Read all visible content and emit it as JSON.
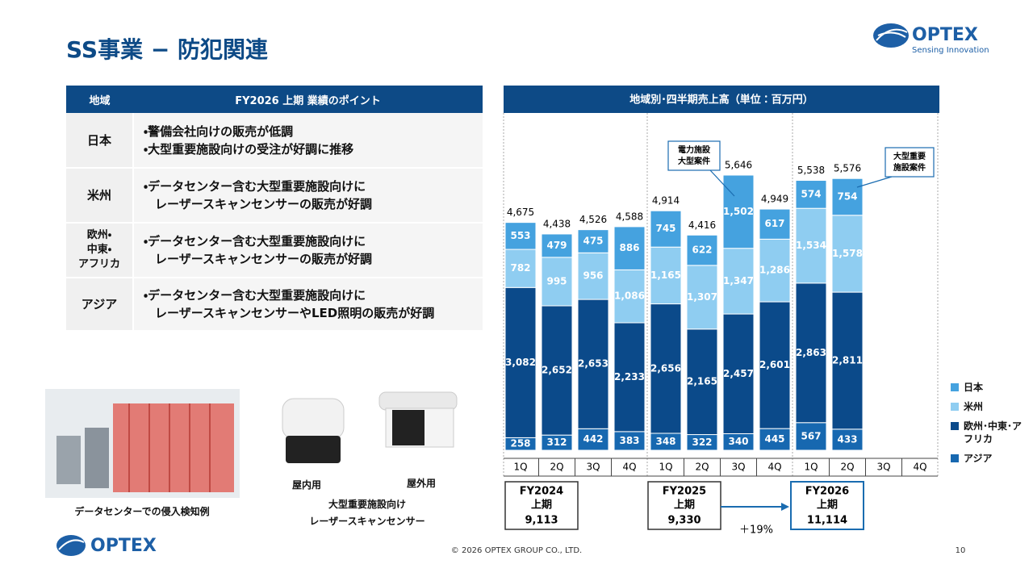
{
  "header": {
    "title": "SS事業 − 防犯関連",
    "logo": "OPTEX",
    "tagline": "Sensing Innovation"
  },
  "table": {
    "columns": [
      "地域",
      "FY2026 上期 業績のポイント"
    ],
    "rows": [
      {
        "region": [
          "日本"
        ],
        "points": [
          "・警備会社向けの販売が低調",
          "・大型重要施設向けの受注が好調に推移"
        ]
      },
      {
        "region": [
          "米州"
        ],
        "points": [
          "・データセンター含む大型重要施設向けに",
          "レーザースキャンセンサーの販売が好調"
        ]
      },
      {
        "region": [
          "欧州・",
          "中東・",
          "アフリカ"
        ],
        "points": [
          "・データセンター含む大型重要施設向けに",
          "レーザースキャンセンサーの販売が好調"
        ]
      },
      {
        "region": [
          "アジア"
        ],
        "points": [
          "・データセンター含む大型重要施設向けに",
          "レーザースキャンセンサーやLED照明の販売が好調"
        ]
      }
    ]
  },
  "images": {
    "datacenter_caption": "データセンターでの侵入検知例",
    "indoor": "屋内用",
    "outdoor": "屋外用",
    "sensor_caption": [
      "大型重要施設向け",
      "レーザースキャンセンサー"
    ]
  },
  "chart_data": {
    "type": "bar",
    "stacked": true,
    "title": "地域別･四半期売上高（単位：百万円）",
    "categories": [
      "1Q",
      "2Q",
      "3Q",
      "4Q",
      "1Q",
      "2Q",
      "3Q",
      "4Q",
      "1Q",
      "2Q",
      "3Q",
      "4Q"
    ],
    "series": [
      {
        "name": "アジア",
        "color": "#1768b0",
        "values": [
          258,
          312,
          442,
          383,
          348,
          322,
          340,
          445,
          567,
          433,
          null,
          null
        ],
        "value_labels": [
          "258",
          "312",
          "442",
          "383",
          "348",
          "322",
          "340",
          "445",
          "567",
          "433",
          null,
          null
        ]
      },
      {
        "name": "欧州･中東･アフリカ",
        "color": "#0b4a8a",
        "values": [
          3082,
          2652,
          2653,
          2233,
          2656,
          2165,
          2457,
          2601,
          2863,
          2811,
          null,
          null
        ],
        "value_labels": [
          "3,082",
          "2,652",
          "2,653",
          "2,233",
          "2,656",
          "2,165",
          "2,457",
          "2,601",
          "2,863",
          "2,811",
          null,
          null
        ]
      },
      {
        "name": "米州",
        "color": "#8fcdf1",
        "values": [
          782,
          995,
          956,
          1086,
          1165,
          1307,
          1347,
          1286,
          1534,
          1578,
          null,
          null
        ],
        "value_labels": [
          "782",
          "995",
          "956",
          "1,086",
          "1,165",
          "1,307",
          "1,347",
          "1,286",
          "1,534",
          "1,578",
          null,
          null
        ]
      },
      {
        "name": "日本",
        "color": "#45a2df",
        "values": [
          553,
          479,
          475,
          886,
          745,
          622,
          1502,
          617,
          574,
          754,
          null,
          null
        ],
        "value_labels": [
          "553",
          "479",
          "475",
          "886",
          "745",
          "622",
          "1,502",
          "617",
          "574",
          "754",
          null,
          null
        ]
      }
    ],
    "totals": {
      "values": [
        4675,
        4438,
        4526,
        4588,
        4914,
        4416,
        5646,
        4949,
        5538,
        5576,
        null,
        null
      ],
      "value_labels": [
        "4,675",
        "4,438",
        "4,526",
        "4,588",
        "4,914",
        "4,416",
        "5,646",
        "4,949",
        "5,538",
        "5,576",
        null,
        null
      ]
    },
    "periods": [
      {
        "label": [
          "FY2024",
          "上期"
        ],
        "value": 9113,
        "value_label": "9,113"
      },
      {
        "label": [
          "FY2025",
          "上期"
        ],
        "value": 9330,
        "value_label": "9,330"
      },
      {
        "label": [
          "FY2026",
          "上期"
        ],
        "value": 11114,
        "value_label": "11,114"
      }
    ],
    "growth": "＋19%",
    "annotations": [
      [
        "電力施設",
        "大型案件"
      ],
      [
        "大型重要",
        "施設案件"
      ]
    ]
  },
  "footer": {
    "logo": "OPTEX",
    "copyright": "© 2026 OPTEX GROUP CO., LTD.",
    "page": "10"
  }
}
